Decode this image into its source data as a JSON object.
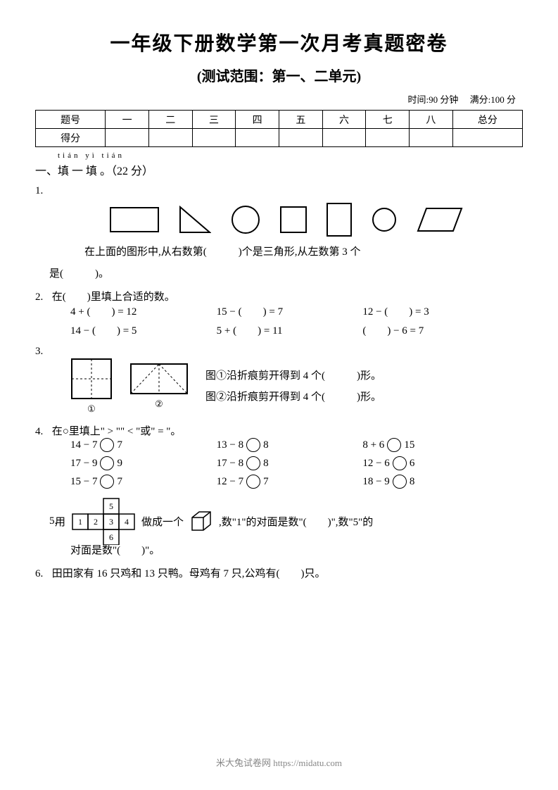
{
  "title": "一年级下册数学第一次月考真题密卷",
  "subtitle": "(测试范围：第一、二单元)",
  "meta": {
    "time": "时间:90 分钟",
    "full": "满分:100 分"
  },
  "table": {
    "row1": [
      "题号",
      "一",
      "二",
      "三",
      "四",
      "五",
      "六",
      "七",
      "八",
      "总分"
    ],
    "row2_label": "得分"
  },
  "section1": {
    "pinyin": "tián  yì  tián",
    "head": "一、填 一 填 。（22 分）",
    "q1": {
      "num": "1.",
      "line1": "在上面的图形中,从右数第(　　　)个是三角形,从左数第 3 个",
      "line2": "是(　　　)。",
      "shapes_stroke": "#000000"
    },
    "q2": {
      "num": "2.",
      "text": "在(　　)里填上合适的数。",
      "eqs": [
        [
          "4 + (　　) = 12",
          "15 − (　　) = 7",
          "12 − (　　) = 3"
        ],
        [
          "14 − (　　) = 5",
          "5 + (　　) = 11",
          "(　　) − 6 = 7"
        ]
      ]
    },
    "q3": {
      "num": "3.",
      "label1": "①",
      "label2": "②",
      "t1": "图①沿折痕剪开得到 4 个(　　　)形。",
      "t2": "图②沿折痕剪开得到 4 个(　　　)形。"
    },
    "q4": {
      "num": "4.",
      "text": "在○里填上\" > \"\" < \"或\" = \"。",
      "rows": [
        [
          "14 − 7",
          "7",
          "13 − 8",
          "8",
          "8 + 6",
          "15"
        ],
        [
          "17 − 9",
          "9",
          "17 − 8",
          "8",
          "12 − 6",
          "6"
        ],
        [
          "15 − 7",
          "7",
          "12 − 7",
          "7",
          "18 − 9",
          "8"
        ]
      ]
    },
    "q5": {
      "num": "5.",
      "pre": "用",
      "net": [
        "5",
        "1",
        "2",
        "3",
        "4",
        "6"
      ],
      "mid1": "做成一个",
      "mid2": ",数\"1\"的对面是数\"(　　)\",数\"5\"的",
      "line2": "对面是数\"(　　)\"。"
    },
    "q6": {
      "num": "6.",
      "text": "田田家有 16 只鸡和 13 只鸭。母鸡有 7 只,公鸡有(　　)只。"
    }
  },
  "watermark": "米大兔试卷网 https://midatu.com"
}
